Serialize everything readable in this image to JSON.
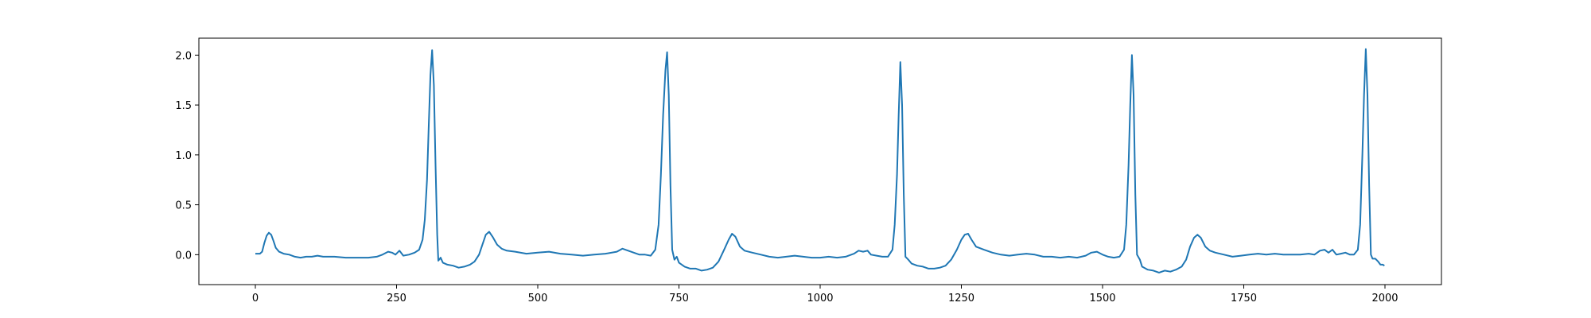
{
  "chart_data": {
    "type": "line",
    "title": "",
    "xlabel": "",
    "ylabel": "",
    "xlim": [
      -100,
      2100
    ],
    "ylim": [
      -0.3,
      2.17
    ],
    "grid": false,
    "legend": "none",
    "x_ticks": [
      0,
      250,
      500,
      750,
      1000,
      1250,
      1500,
      1750,
      2000
    ],
    "y_ticks": [
      0.0,
      0.5,
      1.0,
      1.5,
      2.0
    ],
    "x_tick_labels": [
      "0",
      "250",
      "500",
      "750",
      "1000",
      "1250",
      "1500",
      "1750",
      "2000"
    ],
    "y_tick_labels": [
      "0.0",
      "0.5",
      "1.0",
      "1.5",
      "2.0"
    ],
    "series": [
      {
        "color": "#1f77b4",
        "points": [
          [
            0,
            0.01
          ],
          [
            8,
            0.01
          ],
          [
            12,
            0.03
          ],
          [
            16,
            0.12
          ],
          [
            20,
            0.19
          ],
          [
            24,
            0.22
          ],
          [
            28,
            0.2
          ],
          [
            32,
            0.14
          ],
          [
            36,
            0.07
          ],
          [
            42,
            0.03
          ],
          [
            50,
            0.01
          ],
          [
            60,
            0.0
          ],
          [
            70,
            -0.02
          ],
          [
            80,
            -0.03
          ],
          [
            90,
            -0.02
          ],
          [
            100,
            -0.02
          ],
          [
            110,
            -0.01
          ],
          [
            120,
            -0.02
          ],
          [
            140,
            -0.02
          ],
          [
            160,
            -0.03
          ],
          [
            180,
            -0.03
          ],
          [
            200,
            -0.03
          ],
          [
            215,
            -0.02
          ],
          [
            225,
            0.0
          ],
          [
            235,
            0.03
          ],
          [
            242,
            0.02
          ],
          [
            248,
            0.0
          ],
          [
            255,
            0.04
          ],
          [
            262,
            -0.01
          ],
          [
            272,
            0.0
          ],
          [
            282,
            0.02
          ],
          [
            290,
            0.05
          ],
          [
            296,
            0.15
          ],
          [
            300,
            0.35
          ],
          [
            304,
            0.75
          ],
          [
            307,
            1.3
          ],
          [
            310,
            1.8
          ],
          [
            313,
            2.05
          ],
          [
            316,
            1.7
          ],
          [
            319,
            0.9
          ],
          [
            322,
            0.2
          ],
          [
            324,
            -0.06
          ],
          [
            328,
            -0.03
          ],
          [
            332,
            -0.08
          ],
          [
            340,
            -0.1
          ],
          [
            350,
            -0.11
          ],
          [
            360,
            -0.13
          ],
          [
            370,
            -0.12
          ],
          [
            380,
            -0.1
          ],
          [
            388,
            -0.07
          ],
          [
            396,
            0.0
          ],
          [
            402,
            0.1
          ],
          [
            408,
            0.2
          ],
          [
            414,
            0.23
          ],
          [
            420,
            0.18
          ],
          [
            428,
            0.1
          ],
          [
            436,
            0.06
          ],
          [
            445,
            0.04
          ],
          [
            460,
            0.03
          ],
          [
            480,
            0.01
          ],
          [
            500,
            0.02
          ],
          [
            520,
            0.03
          ],
          [
            540,
            0.01
          ],
          [
            560,
            0.0
          ],
          [
            580,
            -0.01
          ],
          [
            600,
            0.0
          ],
          [
            620,
            0.01
          ],
          [
            640,
            0.03
          ],
          [
            650,
            0.06
          ],
          [
            660,
            0.04
          ],
          [
            670,
            0.02
          ],
          [
            680,
            0.0
          ],
          [
            690,
            0.0
          ],
          [
            700,
            -0.01
          ],
          [
            708,
            0.05
          ],
          [
            714,
            0.3
          ],
          [
            718,
            0.8
          ],
          [
            722,
            1.4
          ],
          [
            726,
            1.85
          ],
          [
            729,
            2.03
          ],
          [
            732,
            1.6
          ],
          [
            735,
            0.7
          ],
          [
            738,
            0.05
          ],
          [
            742,
            -0.05
          ],
          [
            746,
            -0.02
          ],
          [
            750,
            -0.08
          ],
          [
            760,
            -0.12
          ],
          [
            770,
            -0.14
          ],
          [
            780,
            -0.14
          ],
          [
            790,
            -0.16
          ],
          [
            800,
            -0.15
          ],
          [
            810,
            -0.13
          ],
          [
            820,
            -0.07
          ],
          [
            830,
            0.05
          ],
          [
            838,
            0.15
          ],
          [
            844,
            0.21
          ],
          [
            850,
            0.18
          ],
          [
            858,
            0.08
          ],
          [
            866,
            0.04
          ],
          [
            880,
            0.02
          ],
          [
            895,
            0.0
          ],
          [
            910,
            -0.02
          ],
          [
            925,
            -0.03
          ],
          [
            940,
            -0.02
          ],
          [
            955,
            -0.01
          ],
          [
            970,
            -0.02
          ],
          [
            985,
            -0.03
          ],
          [
            1000,
            -0.03
          ],
          [
            1015,
            -0.02
          ],
          [
            1030,
            -0.03
          ],
          [
            1045,
            -0.02
          ],
          [
            1060,
            0.01
          ],
          [
            1068,
            0.04
          ],
          [
            1076,
            0.03
          ],
          [
            1084,
            0.04
          ],
          [
            1090,
            0.0
          ],
          [
            1100,
            -0.01
          ],
          [
            1110,
            -0.02
          ],
          [
            1120,
            -0.02
          ],
          [
            1128,
            0.05
          ],
          [
            1132,
            0.3
          ],
          [
            1136,
            0.8
          ],
          [
            1139,
            1.4
          ],
          [
            1142,
            1.93
          ],
          [
            1145,
            1.5
          ],
          [
            1148,
            0.6
          ],
          [
            1151,
            -0.02
          ],
          [
            1156,
            -0.05
          ],
          [
            1162,
            -0.09
          ],
          [
            1172,
            -0.11
          ],
          [
            1182,
            -0.12
          ],
          [
            1192,
            -0.14
          ],
          [
            1202,
            -0.14
          ],
          [
            1212,
            -0.13
          ],
          [
            1222,
            -0.11
          ],
          [
            1232,
            -0.05
          ],
          [
            1242,
            0.05
          ],
          [
            1250,
            0.15
          ],
          [
            1256,
            0.2
          ],
          [
            1262,
            0.21
          ],
          [
            1268,
            0.15
          ],
          [
            1276,
            0.08
          ],
          [
            1290,
            0.05
          ],
          [
            1305,
            0.02
          ],
          [
            1320,
            0.0
          ],
          [
            1335,
            -0.01
          ],
          [
            1350,
            0.0
          ],
          [
            1365,
            0.01
          ],
          [
            1380,
            0.0
          ],
          [
            1395,
            -0.02
          ],
          [
            1410,
            -0.02
          ],
          [
            1425,
            -0.03
          ],
          [
            1440,
            -0.02
          ],
          [
            1455,
            -0.03
          ],
          [
            1470,
            -0.01
          ],
          [
            1480,
            0.02
          ],
          [
            1490,
            0.03
          ],
          [
            1500,
            0.0
          ],
          [
            1510,
            -0.02
          ],
          [
            1520,
            -0.03
          ],
          [
            1530,
            -0.02
          ],
          [
            1538,
            0.05
          ],
          [
            1542,
            0.3
          ],
          [
            1546,
            0.9
          ],
          [
            1549,
            1.5
          ],
          [
            1552,
            2.0
          ],
          [
            1555,
            1.6
          ],
          [
            1558,
            0.6
          ],
          [
            1561,
            0.0
          ],
          [
            1566,
            -0.05
          ],
          [
            1570,
            -0.12
          ],
          [
            1580,
            -0.15
          ],
          [
            1590,
            -0.16
          ],
          [
            1600,
            -0.18
          ],
          [
            1610,
            -0.16
          ],
          [
            1620,
            -0.17
          ],
          [
            1630,
            -0.15
          ],
          [
            1640,
            -0.12
          ],
          [
            1648,
            -0.05
          ],
          [
            1655,
            0.08
          ],
          [
            1662,
            0.17
          ],
          [
            1668,
            0.2
          ],
          [
            1674,
            0.17
          ],
          [
            1682,
            0.08
          ],
          [
            1690,
            0.04
          ],
          [
            1700,
            0.02
          ],
          [
            1715,
            0.0
          ],
          [
            1730,
            -0.02
          ],
          [
            1745,
            -0.01
          ],
          [
            1760,
            0.0
          ],
          [
            1775,
            0.01
          ],
          [
            1790,
            0.0
          ],
          [
            1805,
            0.01
          ],
          [
            1820,
            0.0
          ],
          [
            1835,
            0.0
          ],
          [
            1850,
            0.0
          ],
          [
            1865,
            0.01
          ],
          [
            1875,
            0.0
          ],
          [
            1885,
            0.04
          ],
          [
            1893,
            0.05
          ],
          [
            1900,
            0.02
          ],
          [
            1907,
            0.05
          ],
          [
            1914,
            0.0
          ],
          [
            1922,
            0.01
          ],
          [
            1930,
            0.02
          ],
          [
            1938,
            0.0
          ],
          [
            1945,
            0.0
          ],
          [
            1952,
            0.05
          ],
          [
            1956,
            0.3
          ],
          [
            1960,
            1.0
          ],
          [
            1963,
            1.6
          ],
          [
            1966,
            2.06
          ],
          [
            1969,
            1.6
          ],
          [
            1972,
            0.7
          ],
          [
            1975,
            0.0
          ],
          [
            1978,
            -0.04
          ],
          [
            1983,
            -0.04
          ],
          [
            1988,
            -0.07
          ],
          [
            1992,
            -0.1
          ],
          [
            1996,
            -0.1
          ],
          [
            1999,
            -0.11
          ]
        ]
      }
    ]
  }
}
